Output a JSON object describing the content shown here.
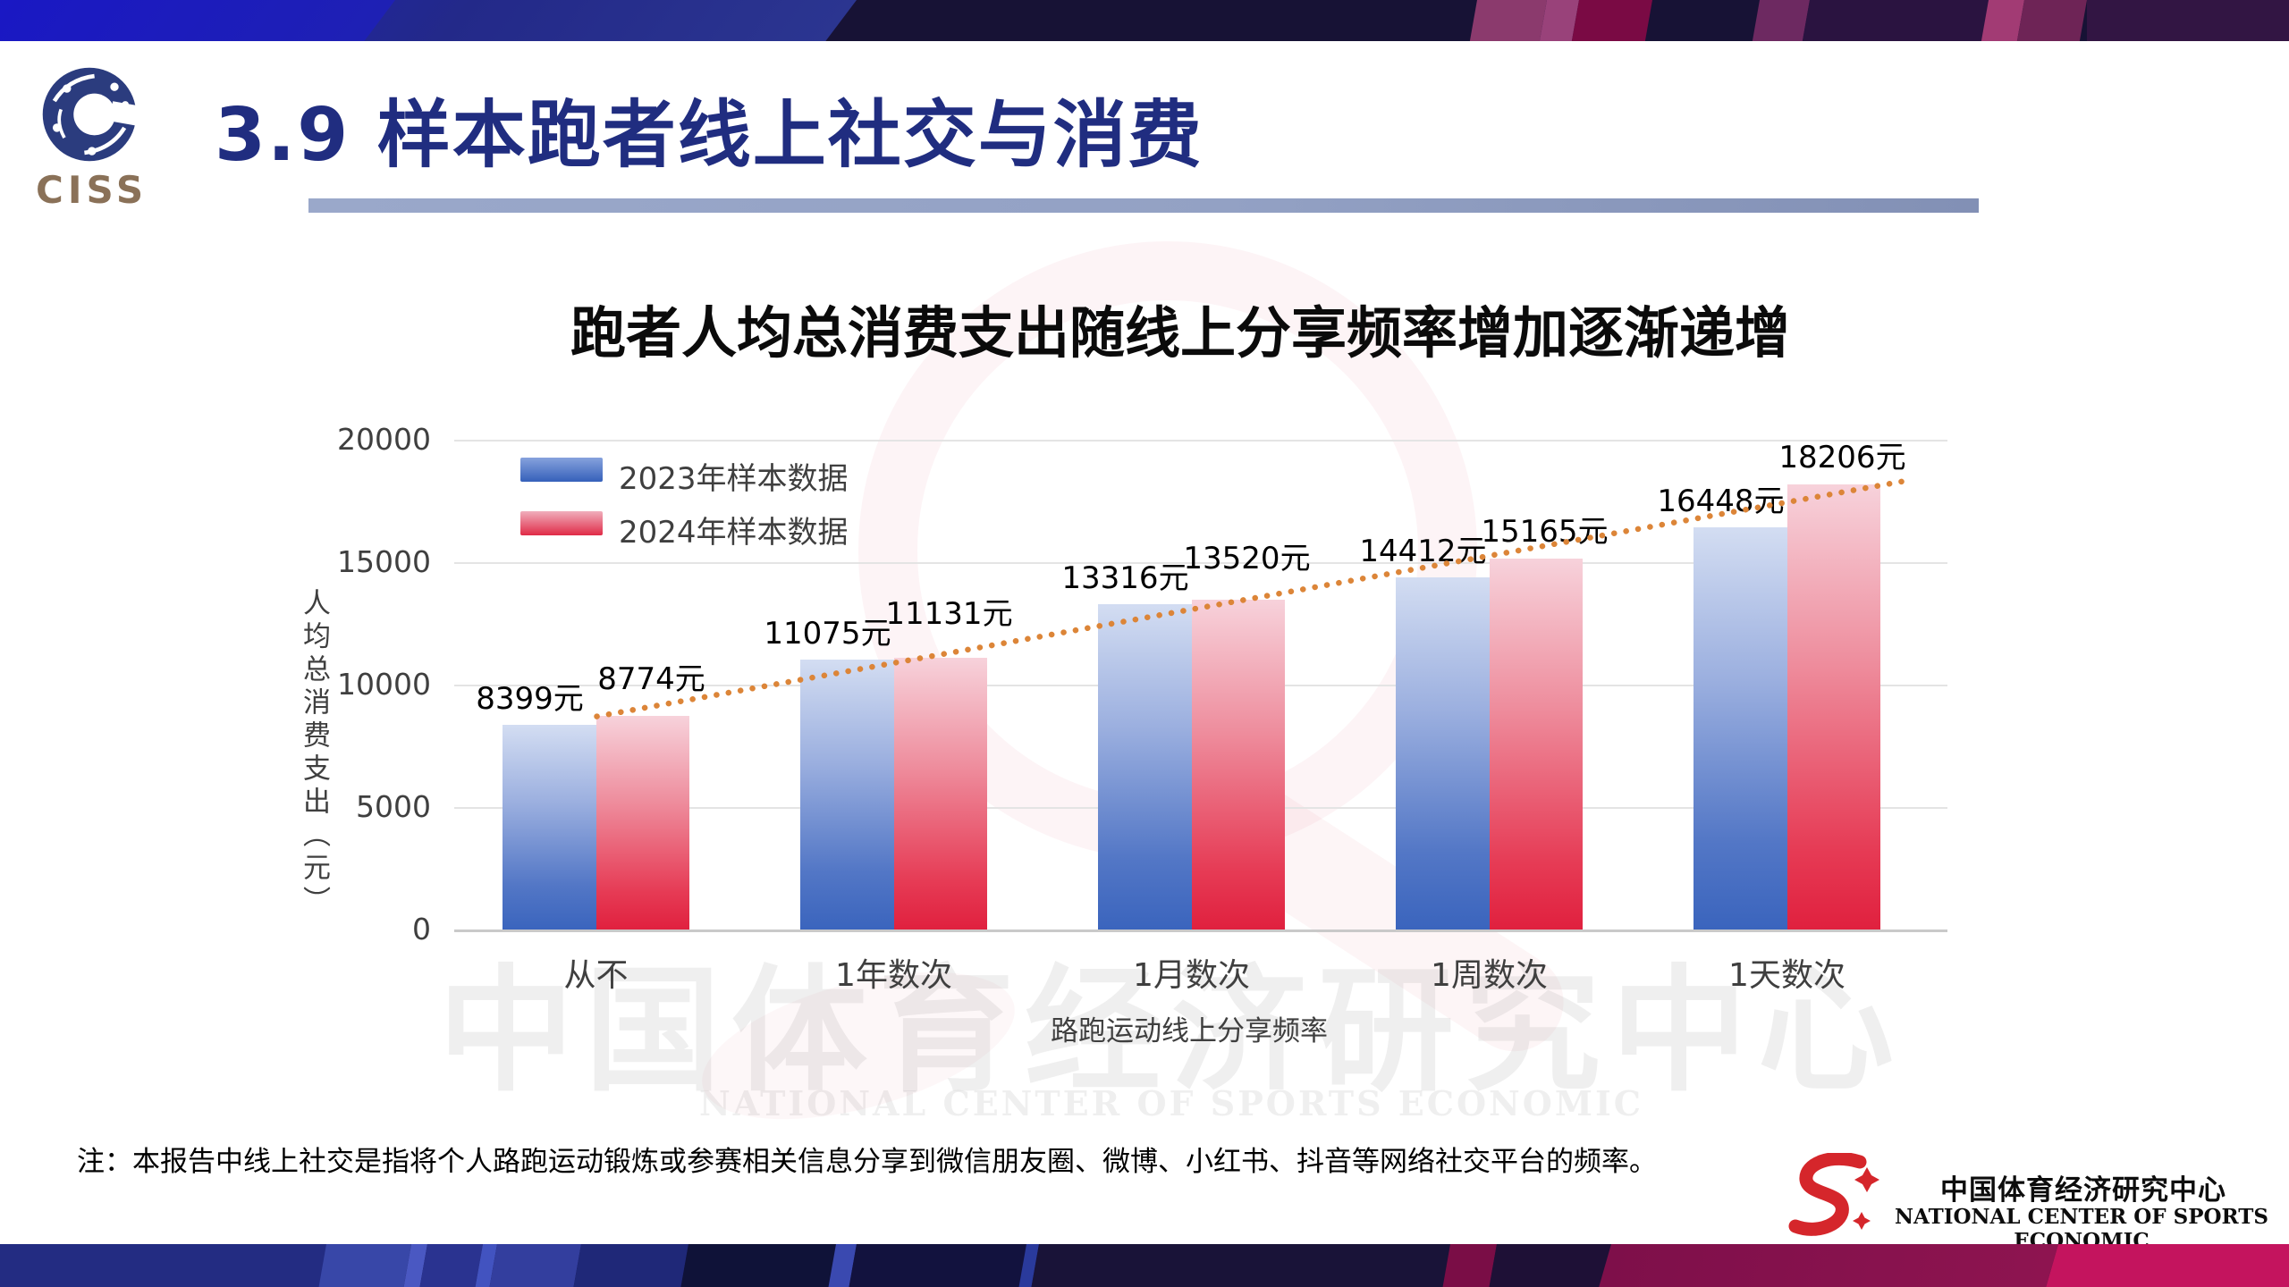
{
  "slide": {
    "title": "3.9 样本跑者线上社交与消费",
    "note": "注：本报告中线上社交是指将个人路跑运动锻炼或参赛相关信息分享到微信朋友圈、微博、小红书、抖音等网络社交平台的频率。"
  },
  "logo": {
    "ciss": "CISS"
  },
  "branding": {
    "name_cn": "中国体育经济研究中心",
    "name_en": "NATIONAL CENTER OF SPORTS ECONOMIC"
  },
  "watermark": {
    "text_cn": "中国体育经济研究中心",
    "text_en": "NATIONAL CENTER OF SPORTS ECONOMIC"
  },
  "chart_data": {
    "type": "bar",
    "title": "跑者人均总消费支出随线上分享频率增加逐渐递增",
    "categories": [
      "从不",
      "1年数次",
      "1月数次",
      "1周数次",
      "1天数次"
    ],
    "series": [
      {
        "name": "2023年样本数据",
        "values": [
          8399,
          11075,
          13316,
          14412,
          16448
        ],
        "labels": [
          "8399元",
          "11075元",
          "13316元",
          "14412元",
          "16448元"
        ]
      },
      {
        "name": "2024年样本数据",
        "values": [
          8774,
          11131,
          13520,
          15165,
          18206
        ],
        "labels": [
          "8774元",
          "11131元",
          "13520元",
          "15165元",
          "18206元"
        ]
      }
    ],
    "xlabel": "路跑运动线上分享频率",
    "ylabel": "人均总消费支出（元）",
    "ylim": [
      0,
      20000
    ],
    "yticks": [
      0,
      5000,
      10000,
      15000,
      20000
    ],
    "grid": "horizontal",
    "legend_position": "top-left-inside",
    "trendline": {
      "style": "dotted",
      "series": "2024年样本数据",
      "from_value": 8774,
      "to_value": 18206
    }
  },
  "colors": {
    "accent_blue_top": "#D3DDF2",
    "accent_blue_bottom": "#3A64BD",
    "accent_red_top": "#F7D2DB",
    "accent_red_bottom": "#E0203E",
    "trendline": "#DC8538",
    "title_navy": "#202D80",
    "topbar_blue": "#1A18C4",
    "bottombar_pink": "#C4145E",
    "ciss_brown": "#8A7158",
    "brand_red": "#D5262B"
  }
}
